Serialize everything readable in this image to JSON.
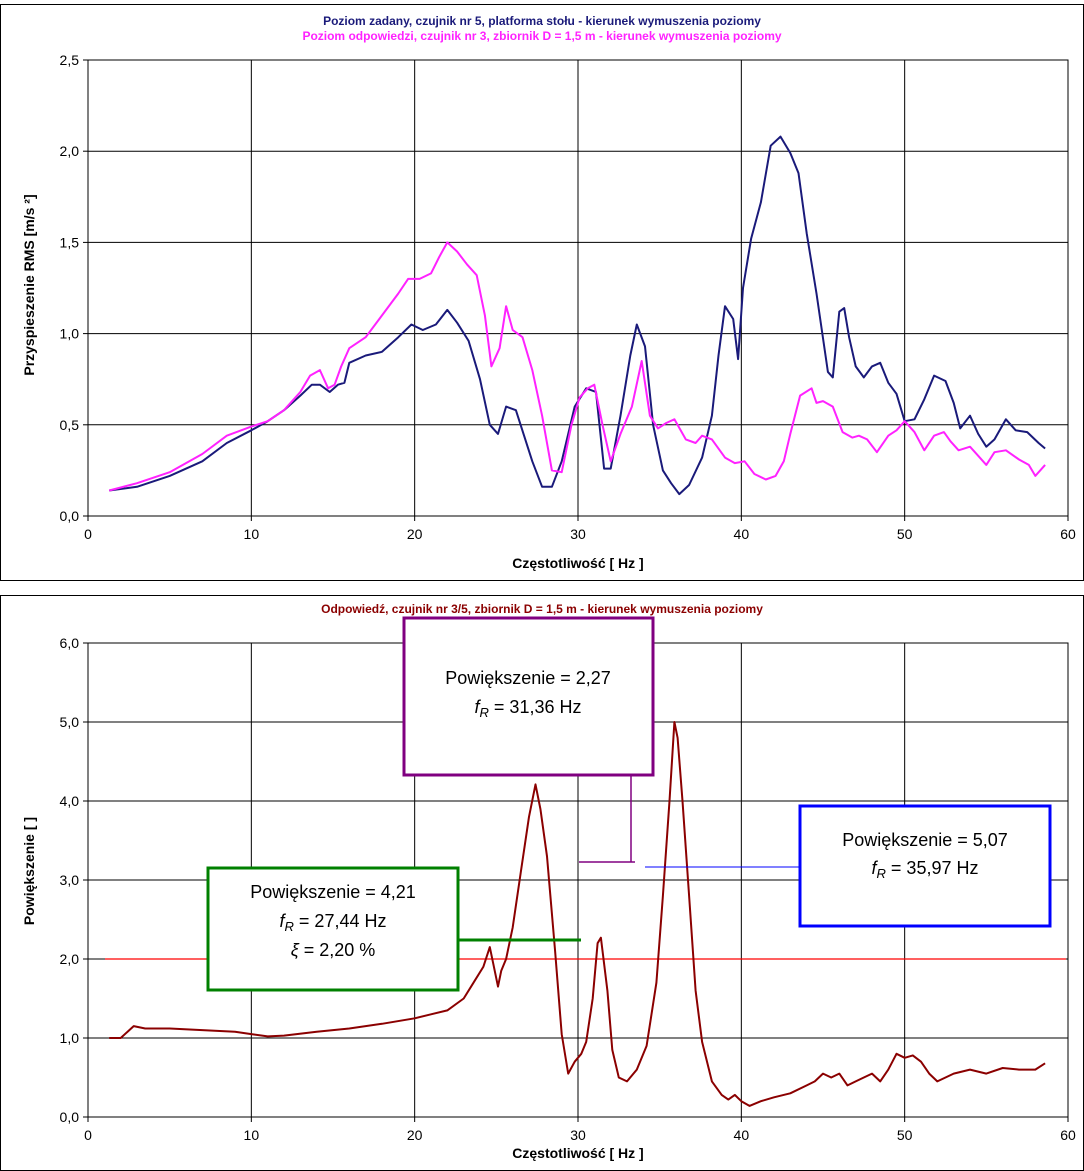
{
  "chart_data": [
    {
      "type": "line",
      "title": "Poziom zadany, czujnik nr 5, platforma stołu - kierunek wymuszenia poziomy",
      "subtitle": "Poziom odpowiedzi, czujnik nr 3, zbiornik D = 1,5 m - kierunek wymuszenia poziomy",
      "xlabel": "Częstotliwość [ Hz ]",
      "ylabel": "Przyspieszenie RMS [m/s ²]",
      "xlim": [
        0,
        60
      ],
      "ylim": [
        0,
        2.5
      ],
      "xticks": [
        "0",
        "10",
        "20",
        "30",
        "40",
        "50",
        "60"
      ],
      "yticks": [
        "0,0",
        "0,5",
        "1,0",
        "1,5",
        "2,0",
        "2,5"
      ],
      "grid": true,
      "series": [
        {
          "color": "#1a1a7a",
          "x": [
            1.3,
            3,
            5,
            7,
            8.5,
            10,
            11,
            12,
            13,
            13.7,
            14.2,
            14.8,
            15.3,
            15.7,
            16,
            17,
            18,
            19,
            19.8,
            20.5,
            21.3,
            22,
            22.6,
            23.3,
            24,
            24.6,
            25.1,
            25.6,
            26.2,
            27.2,
            27.8,
            28.4,
            29,
            29.8,
            30.5,
            31.1,
            31.6,
            32,
            32.6,
            33.2,
            33.6,
            34.1,
            34.6,
            35.2,
            35.7,
            36.2,
            36.8,
            37.6,
            38.2,
            38.6,
            39,
            39.5,
            39.8,
            40.1,
            40.6,
            41.2,
            41.8,
            42.4,
            43,
            43.5,
            44,
            44.6,
            45.3,
            45.6,
            46,
            46.3,
            46.6,
            47,
            47.5,
            48,
            48.5,
            49,
            49.5,
            50,
            50.6,
            51.2,
            51.8,
            52.5,
            53,
            53.4,
            54,
            54.5,
            55,
            55.5,
            56.2,
            56.8,
            57.5,
            58.2,
            58.6
          ],
          "y": [
            0.14,
            0.16,
            0.22,
            0.3,
            0.4,
            0.47,
            0.52,
            0.58,
            0.66,
            0.72,
            0.72,
            0.68,
            0.72,
            0.73,
            0.84,
            0.88,
            0.9,
            0.98,
            1.05,
            1.02,
            1.05,
            1.13,
            1.06,
            0.96,
            0.75,
            0.5,
            0.45,
            0.6,
            0.58,
            0.3,
            0.16,
            0.16,
            0.3,
            0.6,
            0.7,
            0.68,
            0.26,
            0.26,
            0.55,
            0.88,
            1.05,
            0.93,
            0.5,
            0.25,
            0.18,
            0.12,
            0.17,
            0.32,
            0.55,
            0.88,
            1.15,
            1.08,
            0.86,
            1.25,
            1.52,
            1.72,
            2.03,
            2.08,
            1.99,
            1.88,
            1.55,
            1.22,
            0.79,
            0.76,
            1.12,
            1.14,
            0.98,
            0.82,
            0.76,
            0.82,
            0.84,
            0.73,
            0.67,
            0.52,
            0.53,
            0.64,
            0.77,
            0.74,
            0.62,
            0.48,
            0.55,
            0.45,
            0.38,
            0.42,
            0.53,
            0.47,
            0.46,
            0.4,
            0.37
          ]
        },
        {
          "color": "#ff22ff",
          "x": [
            1.3,
            3,
            5,
            7,
            8.5,
            10,
            11,
            12,
            13,
            13.6,
            14.2,
            14.7,
            15.1,
            15.5,
            16,
            17,
            18,
            19,
            19.6,
            20.3,
            21,
            21.5,
            22,
            22.6,
            23.2,
            23.8,
            24.3,
            24.7,
            25.2,
            25.6,
            26,
            26.6,
            27.2,
            27.8,
            28.4,
            29,
            29.6,
            30.1,
            30.6,
            31,
            31.5,
            32,
            32.6,
            33.3,
            33.9,
            34.4,
            34.9,
            35.4,
            35.9,
            36.6,
            37.2,
            37.6,
            38.2,
            39,
            39.6,
            40.2,
            40.8,
            41.5,
            42.1,
            42.6,
            43,
            43.6,
            44.3,
            44.6,
            45,
            45.6,
            46.2,
            46.8,
            47.2,
            47.7,
            48.3,
            49,
            49.5,
            50,
            50.6,
            51.2,
            51.8,
            52.4,
            52.8,
            53.3,
            54,
            54.5,
            55,
            55.5,
            56.2,
            57,
            57.6,
            58,
            58.6
          ],
          "y": [
            0.14,
            0.18,
            0.24,
            0.34,
            0.44,
            0.49,
            0.52,
            0.58,
            0.68,
            0.77,
            0.8,
            0.7,
            0.72,
            0.82,
            0.92,
            0.98,
            1.1,
            1.22,
            1.3,
            1.3,
            1.33,
            1.42,
            1.5,
            1.45,
            1.38,
            1.32,
            1.1,
            0.82,
            0.92,
            1.15,
            1.02,
            0.98,
            0.8,
            0.55,
            0.25,
            0.24,
            0.5,
            0.65,
            0.7,
            0.72,
            0.5,
            0.3,
            0.45,
            0.6,
            0.85,
            0.55,
            0.48,
            0.51,
            0.53,
            0.42,
            0.4,
            0.44,
            0.42,
            0.32,
            0.29,
            0.3,
            0.23,
            0.2,
            0.22,
            0.3,
            0.45,
            0.66,
            0.7,
            0.62,
            0.63,
            0.6,
            0.46,
            0.43,
            0.44,
            0.42,
            0.35,
            0.44,
            0.47,
            0.52,
            0.46,
            0.36,
            0.44,
            0.46,
            0.41,
            0.36,
            0.38,
            0.33,
            0.28,
            0.35,
            0.36,
            0.31,
            0.28,
            0.22,
            0.28
          ]
        }
      ]
    },
    {
      "type": "line",
      "title": "Odpowiedź, czujnik nr 3/5, zbiornik D = 1,5 m - kierunek wymuszenia poziomy",
      "xlabel": "Częstotliwość [ Hz ]",
      "ylabel": "Powiększenie [ ]",
      "xlim": [
        0,
        60
      ],
      "ylim": [
        0,
        6
      ],
      "xticks": [
        "0",
        "10",
        "20",
        "30",
        "40",
        "50",
        "60"
      ],
      "yticks": [
        "0,0",
        "1,0",
        "2,0",
        "3,0",
        "4,0",
        "5,0",
        "6,0"
      ],
      "grid": true,
      "reference_line": {
        "y": 2.0,
        "color": "#ff0000"
      },
      "series": [
        {
          "color": "#8b0000",
          "x": [
            1.3,
            2,
            2.8,
            3.5,
            5,
            7,
            9,
            10,
            11,
            12,
            14,
            16,
            18,
            20,
            21,
            22,
            23,
            23.6,
            24.2,
            24.6,
            24.8,
            25.1,
            25.3,
            25.6,
            26,
            26.5,
            27,
            27.4,
            27.7,
            28.1,
            28.6,
            29,
            29.4,
            29.8,
            30.2,
            30.5,
            30.9,
            31.2,
            31.4,
            31.8,
            32.1,
            32.5,
            33,
            33.6,
            34.2,
            34.8,
            35.2,
            35.6,
            35.9,
            36.1,
            36.4,
            36.8,
            37.2,
            37.6,
            38.2,
            38.8,
            39.2,
            39.6,
            40,
            40.5,
            41.2,
            42,
            43,
            44,
            44.5,
            45,
            45.5,
            46,
            46.5,
            47,
            47.5,
            48,
            48.5,
            49,
            49.5,
            50,
            50.5,
            51,
            51.5,
            52,
            52.5,
            53,
            54,
            55,
            56,
            57,
            58,
            58.6
          ],
          "y": [
            1.0,
            1.0,
            1.15,
            1.12,
            1.12,
            1.1,
            1.08,
            1.05,
            1.02,
            1.03,
            1.08,
            1.12,
            1.18,
            1.25,
            1.3,
            1.35,
            1.5,
            1.7,
            1.9,
            2.15,
            1.95,
            1.65,
            1.85,
            2.0,
            2.4,
            3.1,
            3.8,
            4.21,
            3.9,
            3.3,
            2.1,
            1.05,
            0.55,
            0.7,
            0.8,
            0.95,
            1.5,
            2.2,
            2.27,
            1.6,
            0.85,
            0.5,
            0.45,
            0.6,
            0.9,
            1.7,
            2.8,
            4.0,
            5.0,
            4.8,
            4.0,
            2.8,
            1.6,
            0.95,
            0.45,
            0.28,
            0.22,
            0.28,
            0.2,
            0.14,
            0.2,
            0.25,
            0.3,
            0.4,
            0.45,
            0.55,
            0.5,
            0.55,
            0.4,
            0.45,
            0.5,
            0.55,
            0.45,
            0.6,
            0.8,
            0.75,
            0.78,
            0.7,
            0.55,
            0.45,
            0.5,
            0.55,
            0.6,
            0.55,
            0.62,
            0.6,
            0.6,
            0.68
          ]
        }
      ],
      "annotations": [
        {
          "line1": "Powiększenie = 2,27",
          "line2_sym": "f",
          "line2_sub": "R",
          "line2_rest": " = 31,36 Hz",
          "border": "#800080"
        },
        {
          "line1": "Powiększenie = 4,21",
          "line2_sym": "f",
          "line2_sub": "R",
          "line2_rest": " = 27,44 Hz",
          "line3_sym": "ξ",
          "line3_rest": " = 2,20 %",
          "border": "#008000"
        },
        {
          "line1": "Powiększenie = 5,07",
          "line2_sym": "f",
          "line2_sub": "R",
          "line2_rest": " = 35,97 Hz",
          "border": "#0000ff"
        }
      ]
    }
  ]
}
